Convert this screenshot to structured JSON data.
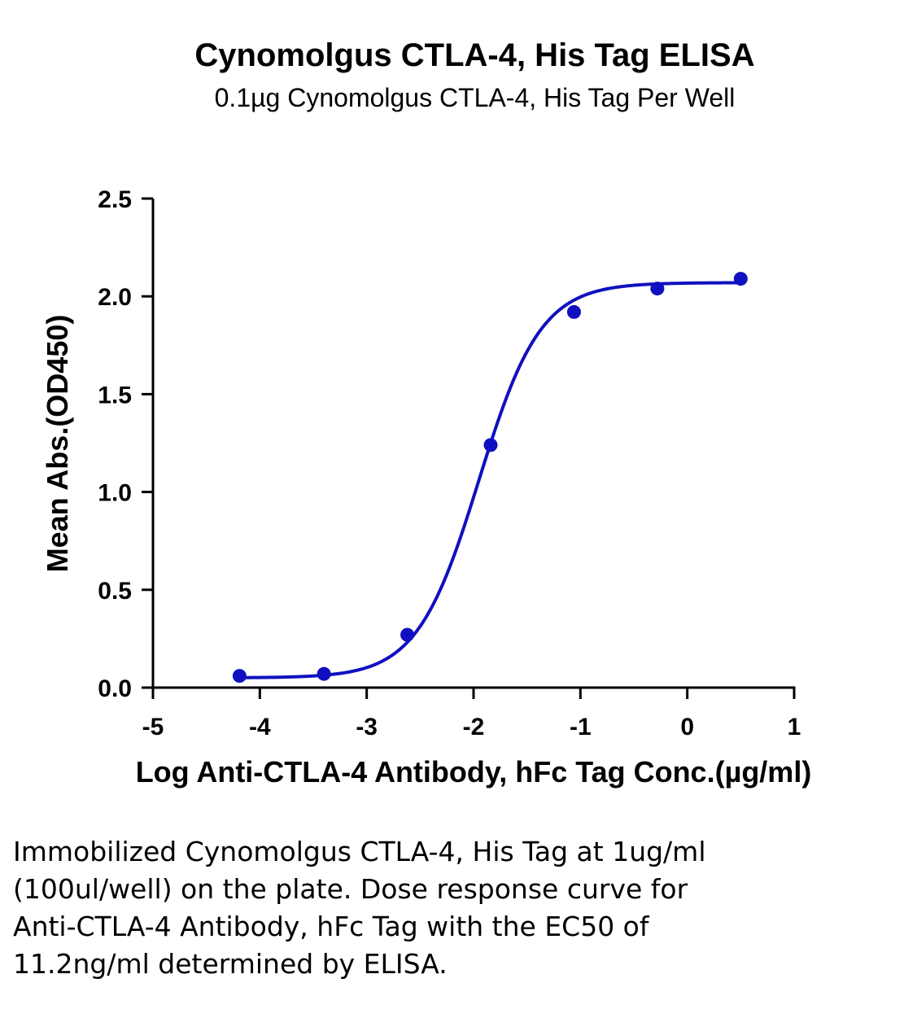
{
  "chart_data": {
    "type": "scatter",
    "title": "Cynomolgus CTLA-4, His Tag ELISA",
    "subtitle": "0.1µg Cynomolgus CTLA-4, His Tag Per Well",
    "xlabel": "Log Anti-CTLA-4 Antibody, hFc Tag Conc.(µg/ml)",
    "ylabel": "Mean Abs.(OD450)",
    "xlim": [
      -5,
      1
    ],
    "ylim": [
      0,
      2.5
    ],
    "x_ticks": [
      "-5",
      "-4",
      "-3",
      "-2",
      "-1",
      "0",
      "1"
    ],
    "y_ticks": [
      "0.0",
      "0.5",
      "1.0",
      "1.5",
      "2.0",
      "2.5"
    ],
    "grid": false,
    "legend": "none",
    "color": "#1010c0",
    "series": [
      {
        "points": [
          {
            "x": -4.19,
            "y": 0.06
          },
          {
            "x": -3.4,
            "y": 0.07
          },
          {
            "x": -2.62,
            "y": 0.27
          },
          {
            "x": -1.84,
            "y": 1.24
          },
          {
            "x": -1.06,
            "y": 1.92
          },
          {
            "x": -0.28,
            "y": 2.04
          },
          {
            "x": 0.5,
            "y": 2.09
          }
        ],
        "fit": {
          "model": "4PL",
          "bottom": 0.05,
          "top": 2.07,
          "log_ec50": -1.95,
          "hill_slope": 1.5,
          "x_range": [
            -4.19,
            0.5
          ]
        }
      }
    ]
  },
  "caption": "Immobilized Cynomolgus CTLA-4, His Tag at 1ug/ml (100ul/well) on the plate. Dose response curve for Anti-CTLA-4 Antibody, hFc Tag with the EC50 of 11.2ng/ml determined by ELISA."
}
